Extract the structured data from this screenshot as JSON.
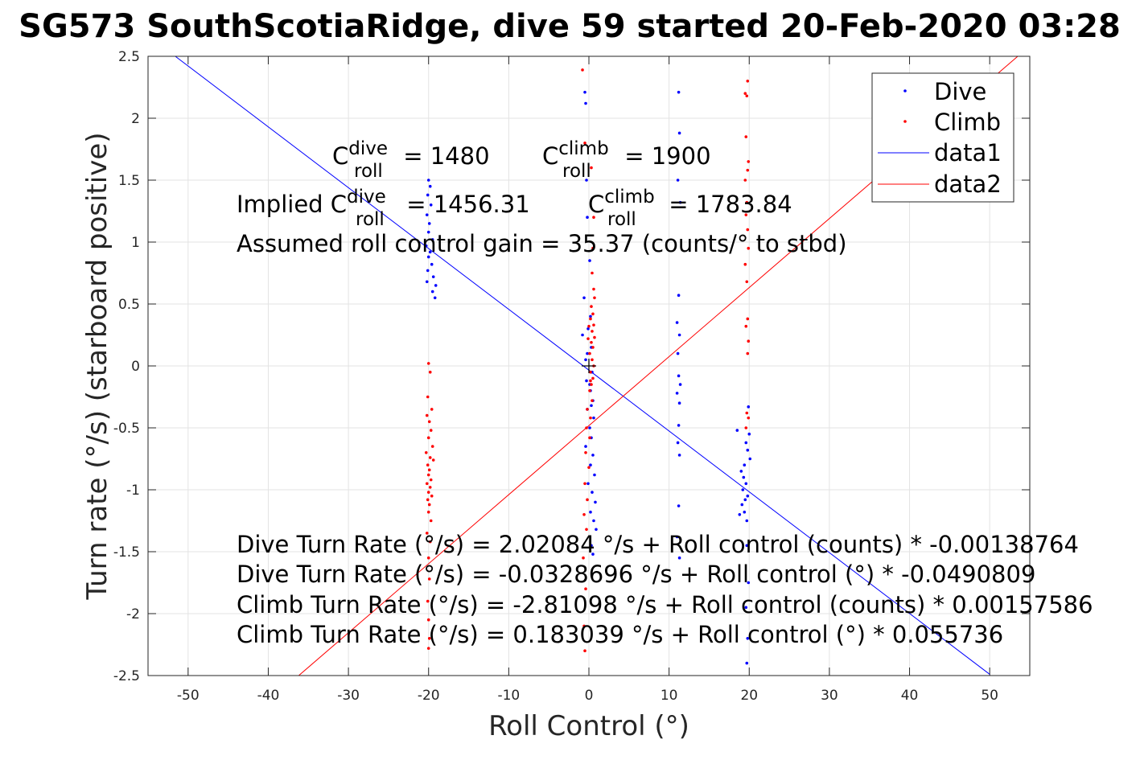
{
  "chart_data": {
    "type": "scatter",
    "title": "SG573 SouthScotiaRidge, dive 59 started 20-Feb-2020 03:28",
    "xlabel": "Roll Control (°)",
    "ylabel": "Turn rate (°/s) (starboard positive)",
    "xlim": [
      -55,
      55
    ],
    "ylim": [
      -2.5,
      2.5
    ],
    "xticks": [
      -50,
      -40,
      -30,
      -20,
      -10,
      0,
      10,
      20,
      30,
      40,
      50
    ],
    "xtick_labels": [
      "-50",
      "-40",
      "-30",
      "-20",
      "-10",
      "0",
      "10",
      "20",
      "30",
      "40",
      "50"
    ],
    "yticks": [
      -2.5,
      -2,
      -1.5,
      -1,
      -0.5,
      0,
      0.5,
      1,
      1.5,
      2,
      2.5
    ],
    "ytick_labels": [
      "-2.5",
      "-2",
      "-1.5",
      "-1",
      "-0.5",
      "0",
      "0.5",
      "1",
      "1.5",
      "2",
      "2.5"
    ],
    "grid": true,
    "legend_position": "top-right",
    "series": [
      {
        "name": "Dive",
        "kind": "points",
        "color": "#0000ff",
        "points": [
          [
            -20.0,
            1.5
          ],
          [
            -19.8,
            1.45
          ],
          [
            -20.1,
            1.38
          ],
          [
            -19.7,
            1.3
          ],
          [
            -20.2,
            1.22
          ],
          [
            -19.9,
            1.15
          ],
          [
            -20.0,
            1.08
          ],
          [
            -19.5,
            1.02
          ],
          [
            -20.3,
            0.97
          ],
          [
            -19.8,
            0.92
          ],
          [
            -20.0,
            0.88
          ],
          [
            -19.6,
            0.82
          ],
          [
            -20.1,
            0.77
          ],
          [
            -19.4,
            0.72
          ],
          [
            -20.2,
            0.68
          ],
          [
            -19.1,
            0.65
          ],
          [
            -19.5,
            0.6
          ],
          [
            -19.2,
            0.55
          ],
          [
            -0.5,
            2.21
          ],
          [
            -0.4,
            2.12
          ],
          [
            -0.3,
            1.5
          ],
          [
            -0.2,
            1.2
          ],
          [
            0.1,
            0.85
          ],
          [
            -0.6,
            0.55
          ],
          [
            0.2,
            0.4
          ],
          [
            -0.1,
            0.3
          ],
          [
            -0.8,
            0.25
          ],
          [
            0.3,
            0.15
          ],
          [
            -0.4,
            0.05
          ],
          [
            0.4,
            -0.05
          ],
          [
            -0.3,
            -0.12
          ],
          [
            0.2,
            -0.2
          ],
          [
            0.5,
            -0.28
          ],
          [
            -0.2,
            -0.35
          ],
          [
            0.6,
            -0.42
          ],
          [
            0.1,
            -0.5
          ],
          [
            0.3,
            -0.58
          ],
          [
            -0.4,
            -0.65
          ],
          [
            0.5,
            -0.72
          ],
          [
            0.2,
            -0.8
          ],
          [
            0.7,
            -0.88
          ],
          [
            -0.1,
            -0.95
          ],
          [
            0.4,
            -1.02
          ],
          [
            0.8,
            -1.1
          ],
          [
            0.2,
            -1.18
          ],
          [
            0.6,
            -1.25
          ],
          [
            0.9,
            -1.32
          ],
          [
            0.3,
            -1.45
          ],
          [
            0.5,
            -1.52
          ],
          [
            0.1,
            -0.15
          ],
          [
            0.3,
            -0.32
          ],
          [
            -0.2,
            0.1
          ],
          [
            11.2,
            2.21
          ],
          [
            11.3,
            1.88
          ],
          [
            11.1,
            1.5
          ],
          [
            11.4,
            1.32
          ],
          [
            11.2,
            0.57
          ],
          [
            11.0,
            0.35
          ],
          [
            11.3,
            0.25
          ],
          [
            11.1,
            0.1
          ],
          [
            11.2,
            -0.08
          ],
          [
            11.4,
            -0.15
          ],
          [
            11.0,
            -0.22
          ],
          [
            11.3,
            -0.3
          ],
          [
            11.2,
            -0.48
          ],
          [
            11.1,
            -0.62
          ],
          [
            11.3,
            -0.72
          ],
          [
            11.2,
            -1.13
          ],
          [
            11.0,
            -1.38
          ],
          [
            11.3,
            -1.55
          ],
          [
            18.5,
            -0.52
          ],
          [
            19.0,
            -0.85
          ],
          [
            19.3,
            -0.9
          ],
          [
            19.6,
            -0.95
          ],
          [
            19.2,
            -1.0
          ],
          [
            19.8,
            -1.05
          ],
          [
            19.5,
            -1.08
          ],
          [
            19.1,
            -1.12
          ],
          [
            19.4,
            -1.18
          ],
          [
            18.8,
            -1.2
          ],
          [
            19.7,
            -1.25
          ],
          [
            19.9,
            -0.33
          ],
          [
            20.0,
            -0.55
          ],
          [
            19.6,
            -0.62
          ],
          [
            19.8,
            -0.68
          ],
          [
            20.1,
            -0.75
          ],
          [
            19.4,
            -0.8
          ],
          [
            19.7,
            -1.45
          ],
          [
            19.9,
            -1.75
          ],
          [
            19.6,
            -1.95
          ],
          [
            19.8,
            -2.2
          ],
          [
            19.7,
            -2.4
          ]
        ]
      },
      {
        "name": "Climb",
        "kind": "points",
        "color": "#ff0000",
        "points": [
          [
            -20.0,
            0.02
          ],
          [
            -19.8,
            -0.05
          ],
          [
            -20.1,
            -0.25
          ],
          [
            -19.6,
            -0.35
          ],
          [
            -20.2,
            -0.4
          ],
          [
            -19.9,
            -0.45
          ],
          [
            -19.7,
            -0.52
          ],
          [
            -20.0,
            -0.58
          ],
          [
            -19.5,
            -0.65
          ],
          [
            -20.3,
            -0.7
          ],
          [
            -19.8,
            -0.74
          ],
          [
            -19.4,
            -0.76
          ],
          [
            -20.1,
            -0.8
          ],
          [
            -19.9,
            -0.84
          ],
          [
            -20.0,
            -0.88
          ],
          [
            -19.7,
            -0.92
          ],
          [
            -20.2,
            -0.95
          ],
          [
            -19.8,
            -0.98
          ],
          [
            -20.0,
            -1.02
          ],
          [
            -19.6,
            -1.05
          ],
          [
            -20.1,
            -1.08
          ],
          [
            -19.9,
            -1.12
          ],
          [
            -20.0,
            -1.18
          ],
          [
            -19.7,
            -1.25
          ],
          [
            -20.2,
            -1.35
          ],
          [
            -19.8,
            -1.42
          ],
          [
            -20.0,
            -1.55
          ],
          [
            -19.9,
            -1.72
          ],
          [
            -20.1,
            -1.9
          ],
          [
            -20.0,
            -2.05
          ],
          [
            -19.9,
            -2.2
          ],
          [
            -20.0,
            -2.28
          ],
          [
            -0.8,
            2.39
          ],
          [
            -0.5,
            1.8
          ],
          [
            0.3,
            1.6
          ],
          [
            0.6,
            1.2
          ],
          [
            0.5,
            0.95
          ],
          [
            0.4,
            0.75
          ],
          [
            0.6,
            0.62
          ],
          [
            0.7,
            0.55
          ],
          [
            0.3,
            0.48
          ],
          [
            0.5,
            0.42
          ],
          [
            0.2,
            0.38
          ],
          [
            0.6,
            0.33
          ],
          [
            0.4,
            0.28
          ],
          [
            0.7,
            0.23
          ],
          [
            0.3,
            0.19
          ],
          [
            0.5,
            0.15
          ],
          [
            0.1,
            0.1
          ],
          [
            0.4,
            0.05
          ],
          [
            0.6,
            0.0
          ],
          [
            0.2,
            -0.05
          ],
          [
            0.5,
            -0.1
          ],
          [
            0.3,
            -0.15
          ],
          [
            0.1,
            -0.2
          ],
          [
            0.4,
            -0.28
          ],
          [
            -0.2,
            -0.35
          ],
          [
            0.2,
            -0.42
          ],
          [
            -0.3,
            -0.5
          ],
          [
            0.1,
            -0.58
          ],
          [
            -0.4,
            -0.7
          ],
          [
            0.0,
            -0.82
          ],
          [
            -0.5,
            -0.95
          ],
          [
            -0.2,
            -1.08
          ],
          [
            -0.6,
            -1.2
          ],
          [
            -0.3,
            -1.32
          ],
          [
            -0.7,
            -1.55
          ],
          [
            -0.4,
            -1.8
          ],
          [
            -0.6,
            -2.1
          ],
          [
            -0.5,
            -2.3
          ],
          [
            -0.1,
            0.22
          ],
          [
            0.2,
            -0.12
          ],
          [
            0.0,
            0.32
          ],
          [
            19.8,
            2.3
          ],
          [
            19.5,
            2.2
          ],
          [
            19.7,
            2.18
          ],
          [
            19.6,
            1.85
          ],
          [
            19.9,
            1.65
          ],
          [
            19.8,
            1.58
          ],
          [
            19.5,
            1.5
          ],
          [
            19.7,
            1.32
          ],
          [
            19.6,
            1.22
          ],
          [
            19.8,
            1.1
          ],
          [
            19.9,
            0.95
          ],
          [
            19.5,
            0.82
          ],
          [
            19.7,
            0.68
          ],
          [
            19.8,
            0.38
          ],
          [
            19.6,
            0.32
          ],
          [
            19.9,
            0.2
          ],
          [
            19.8,
            0.1
          ],
          [
            19.7,
            -0.38
          ],
          [
            19.9,
            -0.42
          ],
          [
            19.6,
            -0.5
          ]
        ]
      },
      {
        "name": "data1",
        "kind": "line",
        "color": "#0000ff",
        "x": [
          -51.6,
          50.0
        ],
        "y": [
          2.5,
          -2.49
        ]
      },
      {
        "name": "data2",
        "kind": "line",
        "color": "#ff0000",
        "x": [
          -36.2,
          53.5
        ],
        "y": [
          -2.5,
          2.5
        ]
      }
    ],
    "origin_marker": [
      0,
      0
    ],
    "annotations": {
      "c_roll_dive": {
        "base": "C",
        "sup": "dive",
        "sub": "roll",
        "rest": " = 1480"
      },
      "c_roll_climb": {
        "base": "C",
        "sup": "climb",
        "sub": "roll",
        "rest": " = 1900"
      },
      "implied_dive": {
        "prefix": "Implied C",
        "sup": "dive",
        "sub": "roll",
        "rest": " = 1456.31"
      },
      "implied_climb": {
        "base": "C",
        "sup": "climb",
        "sub": "roll",
        "rest": " = 1783.84"
      },
      "gain": "Assumed roll control gain = 35.37 (counts/° to stbd)",
      "eq1": "Dive Turn Rate (°/s) = 2.02084 °/s + Roll control (counts) * -0.00138764",
      "eq2": "Dive Turn Rate (°/s) = -0.0328696 °/s + Roll control (°) * -0.0490809",
      "eq3": "Climb Turn Rate (°/s) = -2.81098 °/s + Roll control (counts) * 0.00157586",
      "eq4": "Climb Turn Rate (°/s) = 0.183039 °/s + Roll control (°) * 0.055736"
    }
  }
}
